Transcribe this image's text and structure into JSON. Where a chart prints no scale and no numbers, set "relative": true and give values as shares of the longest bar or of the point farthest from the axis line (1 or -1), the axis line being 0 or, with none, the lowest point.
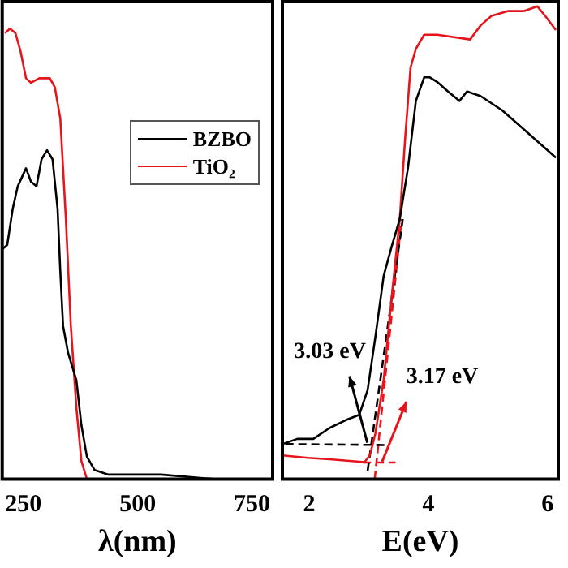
{
  "chart_data": [
    {
      "type": "line",
      "xlabel": "λ(nm)",
      "relative": true,
      "xlim": [
        204,
        795
      ],
      "xticks": [
        250,
        500,
        750
      ],
      "legend": "right",
      "series": [
        {
          "name": "BZBO",
          "color": "#000000",
          "x": [
            204,
            215,
            227,
            238,
            256,
            267,
            279,
            290,
            302,
            314,
            325,
            331,
            337,
            348,
            366,
            377,
            389,
            406,
            435,
            551,
            667,
            794
          ],
          "values": [
            0.51,
            0.52,
            0.6,
            0.65,
            0.69,
            0.66,
            0.65,
            0.71,
            0.73,
            0.71,
            0.6,
            0.46,
            0.34,
            0.28,
            0.22,
            0.12,
            0.05,
            0.02,
            0.01,
            0.01,
            0,
            0
          ]
        },
        {
          "name": "TiO₂",
          "color": "#e8141c",
          "x": [
            210,
            221,
            233,
            244,
            256,
            267,
            285,
            308,
            319,
            331,
            343,
            354,
            366,
            377,
            389,
            406,
            794
          ],
          "values": [
            0.99,
            1,
            0.99,
            0.95,
            0.89,
            0.88,
            0.89,
            0.89,
            0.87,
            0.8,
            0.58,
            0.34,
            0.16,
            0.04,
            0,
            0,
            0
          ]
        }
      ]
    },
    {
      "type": "line",
      "xlabel": "E(eV)",
      "relative": true,
      "xlim": [
        1.55,
        6.18
      ],
      "xticks": [
        2,
        4,
        6
      ],
      "series": [
        {
          "color": "#000000",
          "x": [
            1.55,
            1.8,
            2.07,
            2.34,
            2.62,
            2.84,
            2.98,
            3.11,
            3.25,
            3.38,
            3.52,
            3.66,
            3.79,
            3.93,
            4.02,
            4.15,
            4.33,
            4.52,
            4.65,
            4.88,
            5.24,
            5.6,
            5.87,
            6.14
          ],
          "values": [
            0.074,
            0.085,
            0.085,
            0.108,
            0.125,
            0.136,
            0.188,
            0.3,
            0.43,
            0.49,
            0.55,
            0.66,
            0.8,
            0.85,
            0.85,
            0.84,
            0.82,
            0.8,
            0.82,
            0.81,
            0.78,
            0.74,
            0.71,
            0.68
          ]
        },
        {
          "color": "#e8141c",
          "x": [
            1.55,
            1.98,
            2.34,
            2.93,
            3.02,
            3.11,
            3.25,
            3.38,
            3.52,
            3.61,
            3.7,
            3.79,
            3.93,
            4.15,
            4.7,
            4.88,
            5.06,
            5.33,
            5.6,
            5.83,
            5.96,
            6.14
          ],
          "values": [
            0.05,
            0.045,
            0.042,
            0.036,
            0.051,
            0.096,
            0.21,
            0.38,
            0.55,
            0.72,
            0.87,
            0.91,
            0.94,
            0.94,
            0.93,
            0.96,
            0.98,
            0.99,
            0.99,
            1,
            0.98,
            0.95
          ]
        },
        {
          "color": "#000000",
          "line_style": "dashed",
          "x": [
            1.6,
            3.3
          ],
          "values": [
            0.074,
            0.072
          ]
        },
        {
          "color": "#000000",
          "line_style": "dashed",
          "x": [
            2.98,
            3.57
          ],
          "values": [
            0.017,
            0.55
          ]
        },
        {
          "color": "#e8141c",
          "line_style": "dashed",
          "x": [
            2.9,
            3.45
          ],
          "values": [
            0.035,
            0.035
          ]
        },
        {
          "color": "#e8141c",
          "line_style": "dashed",
          "x": [
            3.1,
            3.55
          ],
          "values": [
            0,
            0.55
          ]
        }
      ],
      "annotations": [
        {
          "text": "3.03 eV",
          "x": 3.03,
          "y": 0.07
        },
        {
          "text": "3.17 eV",
          "x": 3.17,
          "y": 0.03
        }
      ]
    }
  ]
}
